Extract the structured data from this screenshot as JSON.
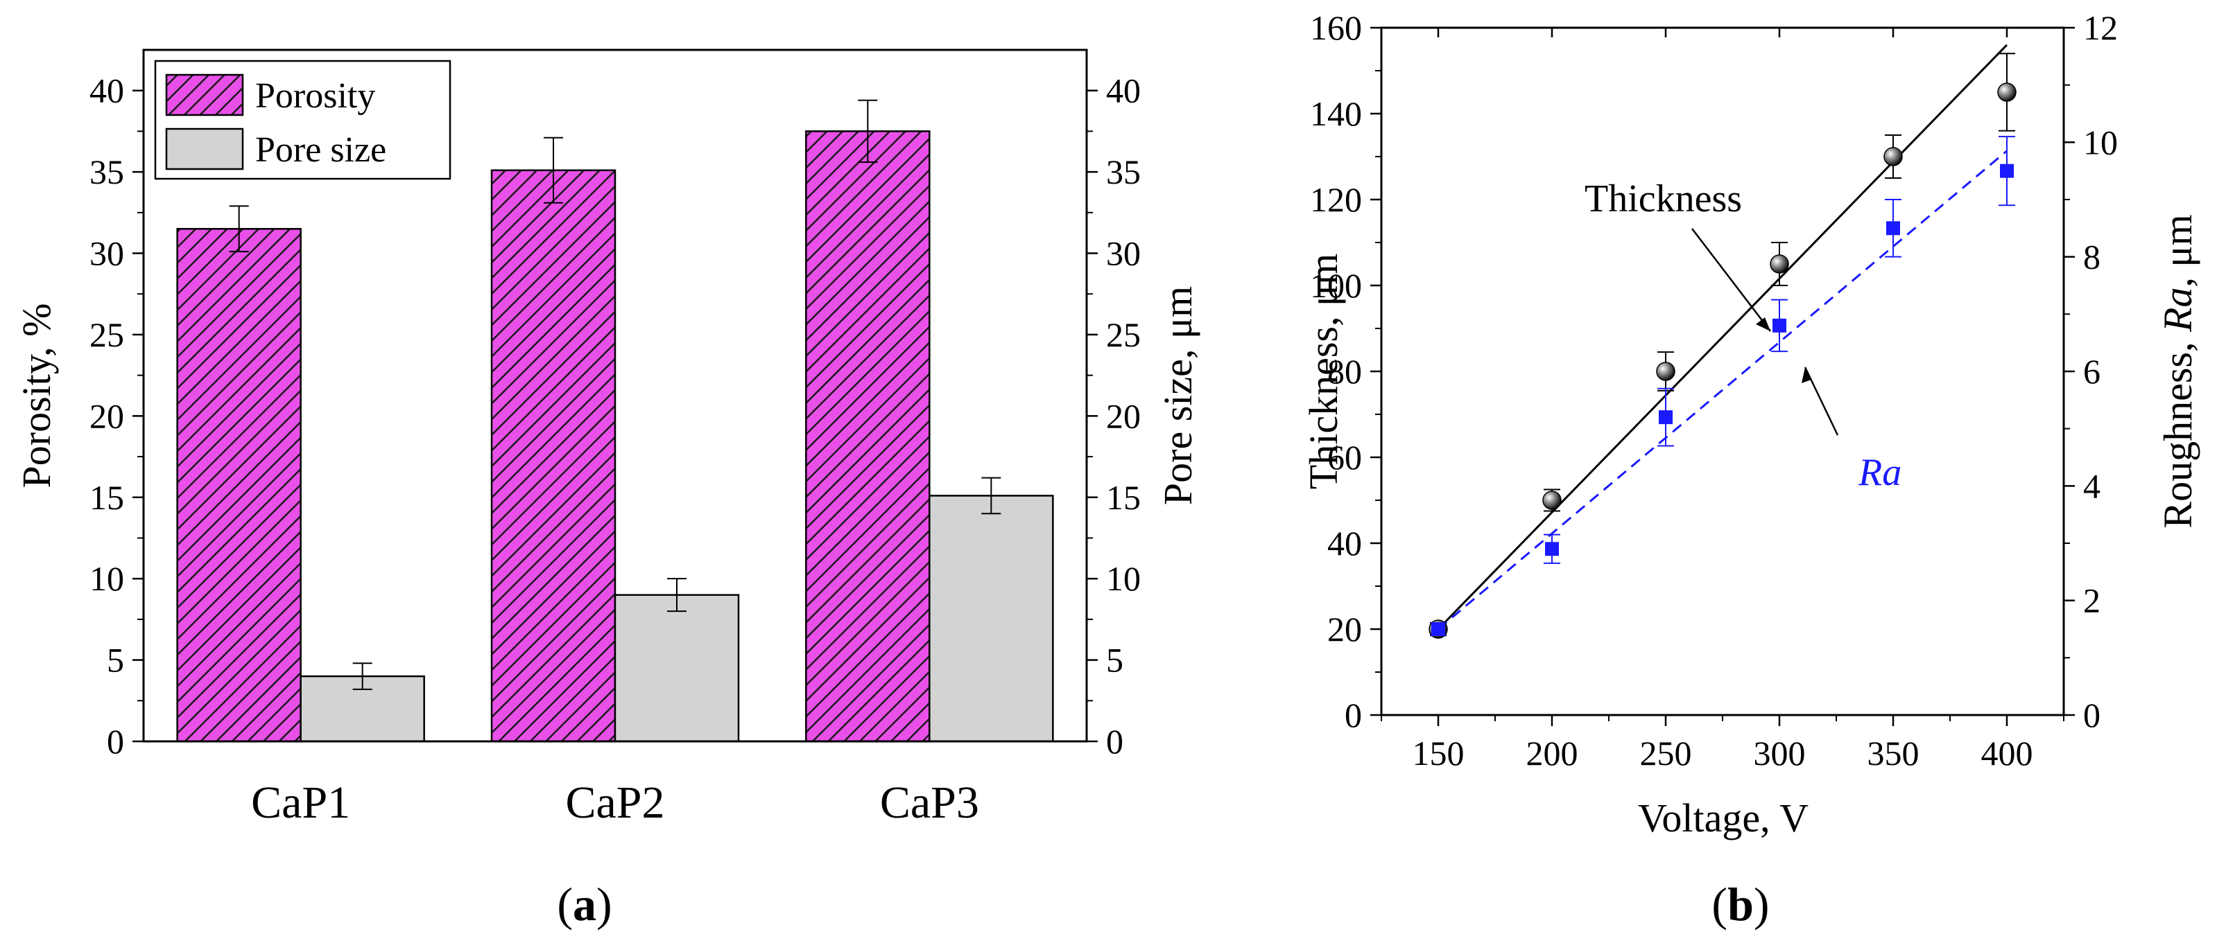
{
  "panels": {
    "a_label": "a",
    "b_label": "b"
  },
  "chart_data": [
    {
      "type": "bar",
      "panel": "a",
      "categories": [
        "CaP1",
        "CaP2",
        "CaP3"
      ],
      "series": [
        {
          "name": "Porosity",
          "axis": "left",
          "values": [
            31.5,
            35.1,
            37.5
          ],
          "errors": [
            1.4,
            2.0,
            1.9
          ],
          "fill": "#e850e8",
          "pattern": "diagonal-hatch"
        },
        {
          "name": "Pore size",
          "axis": "right",
          "values": [
            4.0,
            9.0,
            15.1
          ],
          "errors": [
            0.8,
            1.0,
            1.1
          ],
          "fill": "#d3d3d3",
          "pattern": "solid"
        }
      ],
      "ylabel": "Porosity, %",
      "y2label": "Pore size, μm",
      "xlabel": "",
      "ylim": [
        0,
        42.5
      ],
      "y2lim": [
        0,
        42.5
      ],
      "yticks": [
        0,
        5,
        10,
        15,
        20,
        25,
        30,
        35,
        40
      ],
      "y2ticks": [
        0,
        5,
        10,
        15,
        20,
        25,
        30,
        35,
        40
      ],
      "legend": "top-left"
    },
    {
      "type": "scatter",
      "panel": "b",
      "xlabel": "Voltage, V",
      "ylabel": "Thickness, μm",
      "y2label": "Roughness, Ra, μm",
      "y2label_parts": [
        "Roughness, ",
        "Ra",
        ", μm"
      ],
      "xlim": [
        125,
        425
      ],
      "ylim": [
        0,
        160
      ],
      "y2lim": [
        0,
        12
      ],
      "xticks": [
        150,
        200,
        250,
        300,
        350,
        400
      ],
      "yticks": [
        0,
        20,
        40,
        60,
        80,
        100,
        120,
        140,
        160
      ],
      "y2ticks": [
        0,
        2,
        4,
        6,
        8,
        10,
        12
      ],
      "series": [
        {
          "name": "Thickness",
          "axis": "left",
          "color": "#000000",
          "marker": "sphere",
          "x": [
            150,
            200,
            250,
            300,
            350,
            400
          ],
          "y": [
            20,
            50,
            80,
            105,
            130,
            145
          ],
          "errors": [
            1.5,
            2.5,
            4.5,
            5,
            5,
            9
          ],
          "fit": {
            "x": [
              150,
              400
            ],
            "y": [
              20,
              156
            ],
            "style": "solid"
          }
        },
        {
          "name": "Ra",
          "axis": "right",
          "color": "#1a1aff",
          "marker": "square",
          "x": [
            150,
            200,
            250,
            300,
            350,
            400
          ],
          "y": [
            1.5,
            2.9,
            5.2,
            6.8,
            8.5,
            9.5
          ],
          "errors": [
            0.1,
            0.25,
            0.5,
            0.45,
            0.5,
            0.6
          ],
          "fit": {
            "x": [
              150,
              400
            ],
            "y": [
              1.5,
              9.85
            ],
            "style": "dashed"
          }
        }
      ],
      "annotations": [
        {
          "text": "Thickness",
          "italic": false,
          "color": "#000000"
        },
        {
          "text": "Ra",
          "italic": true,
          "color": "#1a1aff"
        }
      ]
    }
  ]
}
